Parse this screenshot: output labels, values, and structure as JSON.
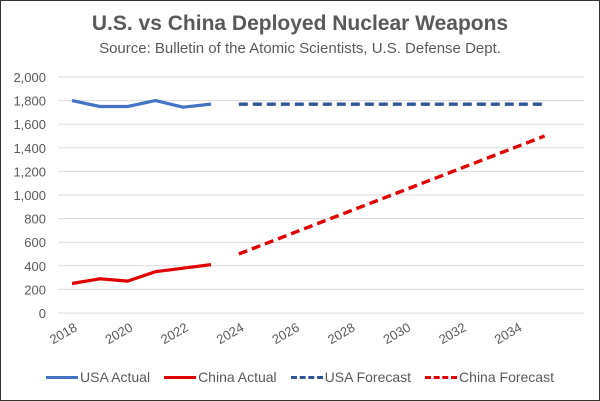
{
  "chart_data": {
    "type": "line",
    "title": "U.S. vs China Deployed Nuclear Weapons",
    "subtitle": "Source:  Bulletin of the Atomic Scientists, U.S. Defense Dept.",
    "xlabel": "",
    "ylabel": "",
    "xlim": [
      2018,
      2035
    ],
    "ylim": [
      0,
      2000
    ],
    "x_ticks": [
      "2018",
      "2020",
      "2022",
      "2024",
      "2026",
      "2028",
      "2030",
      "2032",
      "2034"
    ],
    "y_ticks": [
      "0",
      "200",
      "400",
      "600",
      "800",
      "1,000",
      "1,200",
      "1,400",
      "1,600",
      "1,800",
      "2,000"
    ],
    "y_tick_values": [
      0,
      200,
      400,
      600,
      800,
      1000,
      1200,
      1400,
      1600,
      1800,
      2000
    ],
    "grid": true,
    "legend_position": "bottom",
    "series": [
      {
        "name": "USA Actual",
        "color": "#4472c4",
        "style": "solid",
        "x": [
          2018,
          2019,
          2020,
          2021,
          2022,
          2023
        ],
        "values": [
          1800,
          1750,
          1750,
          1800,
          1744,
          1770
        ]
      },
      {
        "name": "China Actual",
        "color": "#e00000",
        "style": "solid",
        "x": [
          2018,
          2019,
          2020,
          2021,
          2022,
          2023
        ],
        "values": [
          250,
          290,
          270,
          350,
          380,
          410
        ]
      },
      {
        "name": "USA Forecast",
        "color": "#2f5597",
        "style": "dashed",
        "x": [
          2024,
          2035
        ],
        "values": [
          1770,
          1770
        ]
      },
      {
        "name": "China Forecast",
        "color": "#e00000",
        "style": "dashed",
        "x": [
          2024,
          2035
        ],
        "values": [
          500,
          1500
        ]
      }
    ]
  }
}
